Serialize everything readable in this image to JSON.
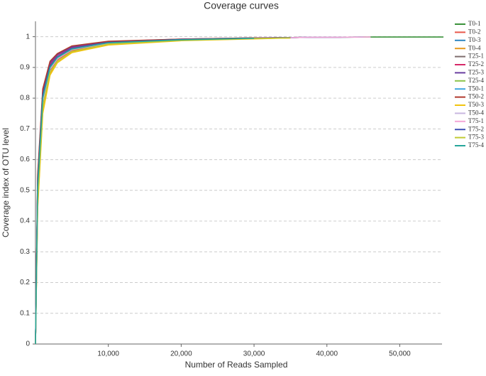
{
  "chart_data": {
    "type": "line",
    "title": "Coverage curves",
    "x_label": "Number of Reads Sampled",
    "y_label": "Coverage index of OTU level",
    "x": [
      0,
      300,
      1000,
      2000,
      3000,
      5000,
      10000,
      20000,
      30000,
      35000,
      37500,
      42000,
      45000,
      46000,
      56000
    ],
    "xlim": [
      0,
      55800
    ],
    "ylim": [
      0,
      1.05
    ],
    "xticks": [
      {
        "value": 10000,
        "label": "10,000"
      },
      {
        "value": 20000,
        "label": "20,000"
      },
      {
        "value": 30000,
        "label": "30,000"
      },
      {
        "value": 40000,
        "label": "40,000"
      },
      {
        "value": 50000,
        "label": "50,000"
      }
    ],
    "yticks": [
      0,
      0.1,
      0.2,
      0.3,
      0.4,
      0.5,
      0.6,
      0.7,
      0.8,
      0.9,
      1
    ],
    "grid": true,
    "legend": "right",
    "series": [
      {
        "name": "T0-1",
        "color": "#3a923a",
        "values": [
          0,
          0.5,
          0.8,
          0.9,
          0.93,
          0.96,
          0.98,
          0.99,
          0.995,
          0.997,
          0.998,
          0.998,
          0.999,
          0.999,
          0.999
        ]
      },
      {
        "name": "T0-2",
        "color": "#e8574a",
        "values": [
          0,
          0.47,
          0.78,
          0.89,
          0.925,
          0.955,
          0.978,
          0.989,
          0.994,
          0.996,
          null,
          null,
          null,
          null,
          null
        ]
      },
      {
        "name": "T0-3",
        "color": "#2e86c1",
        "values": [
          0,
          0.5,
          0.8,
          0.9,
          0.93,
          0.96,
          0.98,
          0.99,
          0.995,
          0.997,
          null,
          null,
          null,
          null,
          null
        ]
      },
      {
        "name": "T0-4",
        "color": "#e69a1e",
        "values": [
          0,
          0.45,
          0.76,
          0.88,
          0.92,
          0.95,
          0.975,
          0.988,
          0.994,
          0.996,
          null,
          null,
          null,
          null,
          null
        ]
      },
      {
        "name": "T25-1",
        "color": "#7f6e6e",
        "values": [
          0,
          0.52,
          0.81,
          0.905,
          0.935,
          0.962,
          0.981,
          0.99,
          0.995,
          0.997,
          0.998,
          null,
          null,
          null,
          null
        ]
      },
      {
        "name": "T25-2",
        "color": "#d62868",
        "values": [
          0,
          0.53,
          0.82,
          0.91,
          0.94,
          0.965,
          0.983,
          0.991,
          0.996,
          0.997,
          0.998,
          0.998,
          null,
          null,
          null
        ]
      },
      {
        "name": "T25-3",
        "color": "#6a3fa0",
        "values": [
          0,
          0.54,
          0.82,
          0.915,
          0.942,
          0.967,
          0.984,
          0.992,
          0.996,
          0.997,
          0.998,
          0.998,
          null,
          null,
          null
        ]
      },
      {
        "name": "T25-4",
        "color": "#8bc34a",
        "values": [
          0,
          0.5,
          0.8,
          0.9,
          0.93,
          0.96,
          0.98,
          0.99,
          0.995,
          0.997,
          null,
          null,
          null,
          null,
          null
        ]
      },
      {
        "name": "T50-1",
        "color": "#3ea6e0",
        "values": [
          0,
          0.51,
          0.8,
          0.9,
          0.932,
          0.96,
          0.98,
          0.99,
          0.995,
          0.997,
          0.998,
          0.998,
          0.999,
          null,
          null
        ]
      },
      {
        "name": "T50-2",
        "color": "#b03a2e",
        "values": [
          0,
          0.55,
          0.83,
          0.92,
          0.945,
          0.97,
          0.985,
          0.992,
          0.996,
          0.997,
          null,
          null,
          null,
          null,
          null
        ]
      },
      {
        "name": "T50-3",
        "color": "#f1c40f",
        "values": [
          0,
          0.44,
          0.75,
          0.875,
          0.915,
          0.948,
          0.973,
          0.987,
          0.993,
          0.996,
          null,
          null,
          null,
          null,
          null
        ]
      },
      {
        "name": "T50-4",
        "color": "#c8b7e0",
        "values": [
          0,
          0.49,
          0.79,
          0.895,
          0.928,
          0.958,
          0.979,
          0.99,
          0.995,
          null,
          null,
          null,
          null,
          null,
          null
        ]
      },
      {
        "name": "T75-1",
        "color": "#f4a6d7",
        "values": [
          0,
          0.5,
          0.8,
          0.9,
          0.93,
          0.96,
          0.98,
          0.99,
          0.995,
          0.997,
          0.998,
          0.998,
          0.999,
          0.999,
          null
        ]
      },
      {
        "name": "T75-2",
        "color": "#3f51b5",
        "values": [
          0,
          0.52,
          0.81,
          0.905,
          0.935,
          0.962,
          0.981,
          0.991,
          0.995,
          0.997,
          null,
          null,
          null,
          null,
          null
        ]
      },
      {
        "name": "T75-3",
        "color": "#c0ca33",
        "values": [
          0,
          0.46,
          0.77,
          0.885,
          0.92,
          0.952,
          0.976,
          0.988,
          0.994,
          0.996,
          null,
          null,
          null,
          null,
          null
        ]
      },
      {
        "name": "T75-4",
        "color": "#26a69a",
        "values": [
          0,
          0.51,
          0.8,
          0.9,
          0.932,
          0.96,
          0.98,
          0.99,
          0.995,
          null,
          null,
          null,
          null,
          null,
          null
        ]
      }
    ]
  }
}
